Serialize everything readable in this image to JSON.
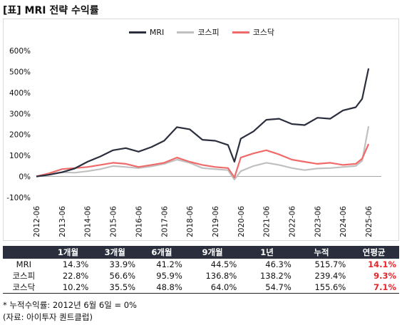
{
  "title": "[표] MRI 전략 수익률",
  "colors": {
    "mri": "#2b2f3d",
    "kospi": "#c0c0c0",
    "kosdaq": "#f06a6a",
    "header_bg": "#2b2f3d",
    "cagr": "#e4262a"
  },
  "chart_data": {
    "type": "line",
    "title": "",
    "xlabel": "",
    "ylabel": "",
    "ylim": [
      -100,
      600
    ],
    "yticks": [
      "-100%",
      "0%",
      "100%",
      "200%",
      "300%",
      "400%",
      "500%",
      "600%"
    ],
    "xticks": [
      "2012-06",
      "2013-06",
      "2014-06",
      "2015-06",
      "2016-06",
      "2017-06",
      "2018-06",
      "2019-06",
      "2020-06",
      "2021-06",
      "2022-06",
      "2023-06",
      "2024-06",
      "2025-06"
    ],
    "legend_position": "top-center",
    "grid": false,
    "x": [
      "2012-06",
      "2012-12",
      "2013-06",
      "2013-12",
      "2014-06",
      "2014-12",
      "2015-06",
      "2015-12",
      "2016-06",
      "2016-12",
      "2017-06",
      "2017-12",
      "2018-06",
      "2018-12",
      "2019-06",
      "2019-12",
      "2020-03",
      "2020-06",
      "2020-12",
      "2021-06",
      "2021-12",
      "2022-06",
      "2022-12",
      "2023-06",
      "2023-12",
      "2024-06",
      "2024-12",
      "2025-03",
      "2025-06"
    ],
    "series": [
      {
        "name": "MRI",
        "values": [
          0,
          8,
          20,
          38,
          70,
          95,
          125,
          135,
          118,
          140,
          170,
          235,
          225,
          175,
          170,
          150,
          70,
          180,
          215,
          270,
          275,
          250,
          245,
          280,
          275,
          315,
          330,
          370,
          515
        ]
      },
      {
        "name": "코스피",
        "values": [
          0,
          12,
          20,
          18,
          25,
          35,
          50,
          45,
          40,
          48,
          60,
          80,
          65,
          40,
          35,
          30,
          -15,
          25,
          50,
          65,
          55,
          40,
          30,
          38,
          40,
          45,
          50,
          75,
          239
        ]
      },
      {
        "name": "코스닥",
        "values": [
          0,
          15,
          35,
          40,
          45,
          55,
          65,
          60,
          45,
          55,
          65,
          90,
          70,
          55,
          45,
          40,
          -5,
          90,
          110,
          125,
          105,
          80,
          70,
          60,
          65,
          55,
          60,
          85,
          155
        ]
      }
    ]
  },
  "table": {
    "headers": [
      "",
      "1개월",
      "3개월",
      "6개월",
      "9개월",
      "1년",
      "누적",
      "연평균"
    ],
    "rows": [
      {
        "name": "MRI",
        "cells": [
          "14.3%",
          "33.9%",
          "41.2%",
          "44.5%",
          "46.3%",
          "515.7%"
        ],
        "cagr": "14.1%"
      },
      {
        "name": "코스피",
        "cells": [
          "22.8%",
          "56.6%",
          "95.9%",
          "136.8%",
          "138.2%",
          "239.4%"
        ],
        "cagr": "9.3%"
      },
      {
        "name": "코스닥",
        "cells": [
          "10.2%",
          "35.5%",
          "48.8%",
          "64.0%",
          "54.7%",
          "155.6%"
        ],
        "cagr": "7.1%"
      }
    ]
  },
  "notes": {
    "cumulative": "* 누적수익률: 2012년 6월 6일 = 0%",
    "source": "(자료: 아이투자 퀀트클럽)"
  }
}
